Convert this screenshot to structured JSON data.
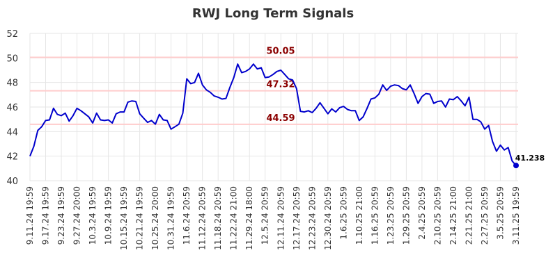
{
  "chart_data": {
    "type": "line",
    "title": "RWJ Long Term Signals",
    "ylim": [
      40,
      52
    ],
    "yticks": [
      40,
      42,
      44,
      46,
      48,
      50,
      52
    ],
    "grid": true,
    "line_color": "#0000cc",
    "levels": [
      {
        "value": 50.05,
        "label": "50.05",
        "line_color": "#ffcccc",
        "label_color": "#8b0000"
      },
      {
        "value": 47.32,
        "label": "47.32",
        "line_color": "#ffcccc",
        "label_color": "#8b0000"
      },
      {
        "value": 44.59,
        "label": "44.59",
        "line_color": "#ffcccc",
        "label_color": "#8b0000"
      }
    ],
    "x_tick_labels": [
      "9.11.24 19:59",
      "9.17.24 19:59",
      "9.23.24 19:59",
      "9.27.24 20:00",
      "10.3.24 19:59",
      "10.9.24 19:59",
      "10.15.24 19:59",
      "10.21.24 19:59",
      "10.25.24 20:00",
      "10.31.24 19:59",
      "11.6.24 20:59",
      "11.12.24 20:59",
      "11.18.24 20:59",
      "11.22.24 21:00",
      "11.29.24 18:00",
      "12.5.24 20:59",
      "12.11.24 20:59",
      "12.17.24 20:59",
      "12.23.24 20:59",
      "12.30.24 20:59",
      "1.6.25 20:59",
      "1.10.25 21:00",
      "1.16.25 20:59",
      "1.23.25 20:59",
      "1.29.25 20:59",
      "2.4.25 20:59",
      "2.10.25 20:59",
      "2.14.25 21:00",
      "2.21.25 21:00",
      "2.27.25 20:59",
      "3.5.25 20:59",
      "3.11.25 19:59"
    ],
    "last_value_label": "41.238",
    "values": [
      42.0,
      42.8,
      44.1,
      44.4,
      44.9,
      44.95,
      45.9,
      45.4,
      45.3,
      45.5,
      44.85,
      45.3,
      45.9,
      45.7,
      45.45,
      45.2,
      44.7,
      45.5,
      44.95,
      44.9,
      44.95,
      44.7,
      45.45,
      45.6,
      45.6,
      46.4,
      46.5,
      46.45,
      45.45,
      45.1,
      44.75,
      44.9,
      44.6,
      45.4,
      44.95,
      44.9,
      44.2,
      44.4,
      44.6,
      45.5,
      48.3,
      47.9,
      48.0,
      48.75,
      47.8,
      47.4,
      47.2,
      46.9,
      46.8,
      46.65,
      46.7,
      47.6,
      48.4,
      49.5,
      48.8,
      48.9,
      49.1,
      49.5,
      49.1,
      49.2,
      48.4,
      48.45,
      48.65,
      48.9,
      49.0,
      48.65,
      48.3,
      48.2,
      47.5,
      45.65,
      45.6,
      45.7,
      45.55,
      45.9,
      46.35,
      45.9,
      45.45,
      45.85,
      45.6,
      45.95,
      46.05,
      45.8,
      45.7,
      45.7,
      44.9,
      45.2,
      45.9,
      46.65,
      46.75,
      47.05,
      47.8,
      47.35,
      47.7,
      47.8,
      47.75,
      47.5,
      47.4,
      47.8,
      47.1,
      46.3,
      46.85,
      47.1,
      47.05,
      46.3,
      46.45,
      46.5,
      46.0,
      46.65,
      46.6,
      46.85,
      46.5,
      46.1,
      46.8,
      45.0,
      45.0,
      44.8,
      44.2,
      44.5,
      43.2,
      42.4,
      42.9,
      42.5,
      42.7,
      41.6,
      41.238
    ]
  }
}
